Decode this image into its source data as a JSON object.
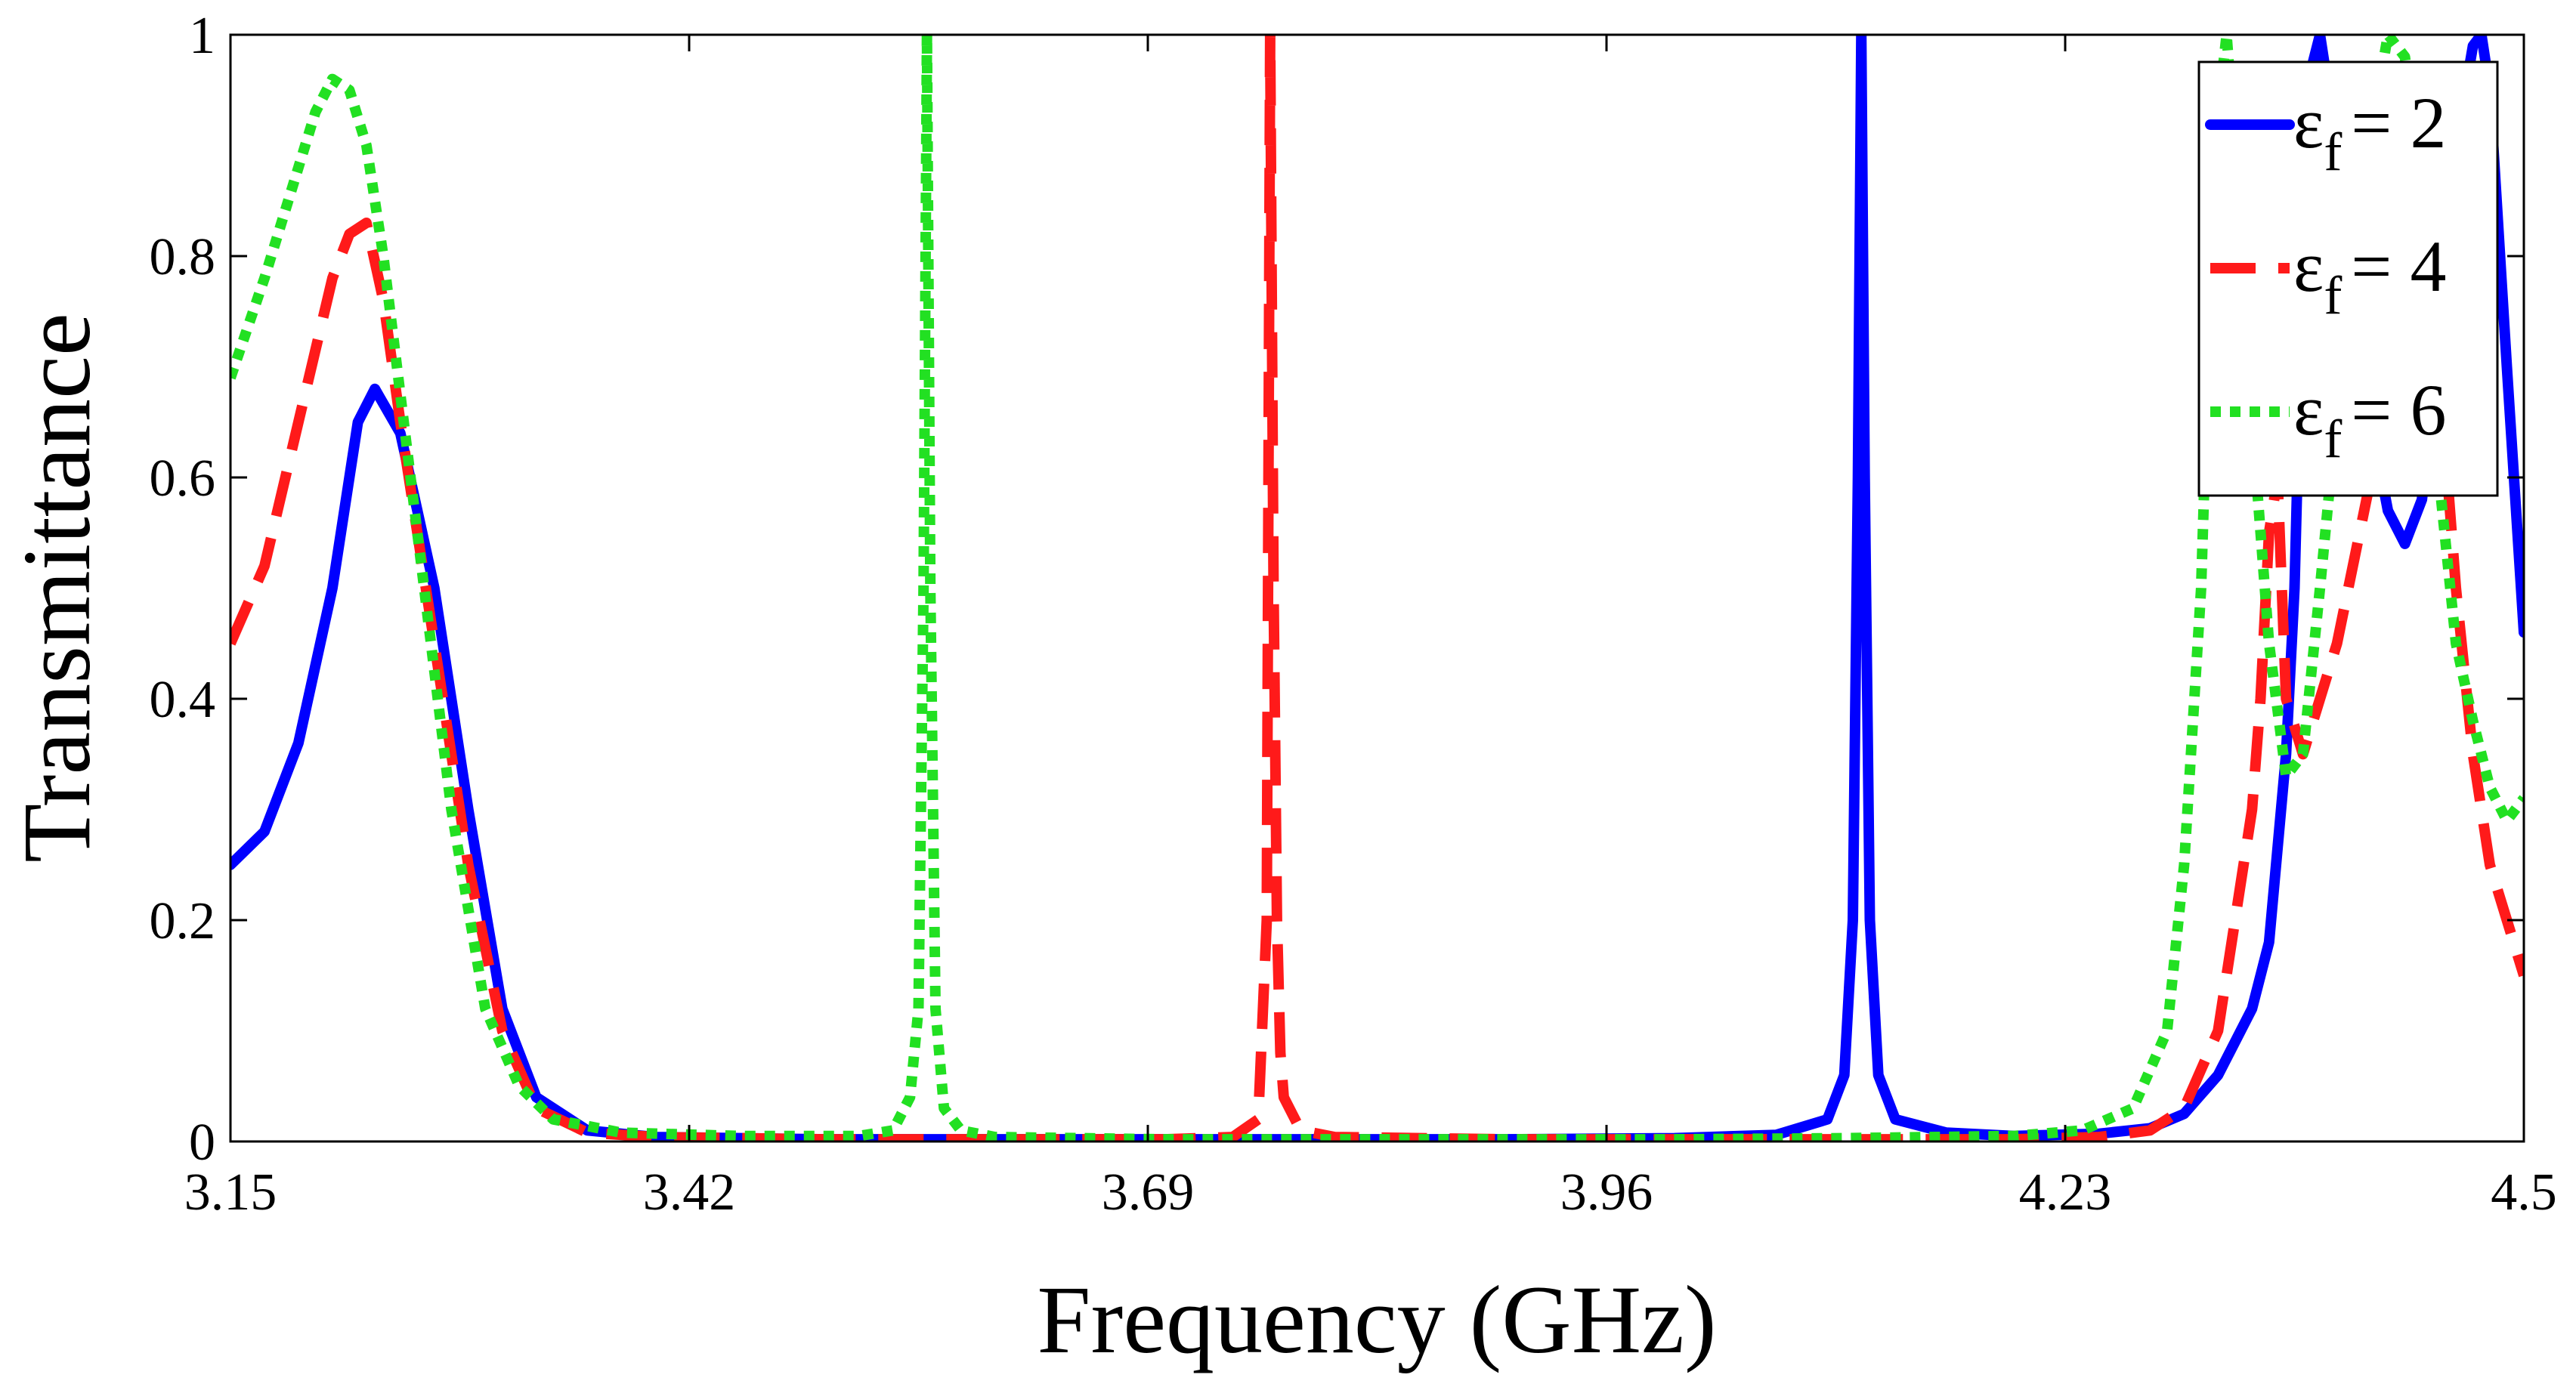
{
  "chart_data": {
    "type": "line",
    "title": "",
    "xlabel": "Frequency (GHz)",
    "ylabel": "Transmittance",
    "xlim": [
      3.15,
      4.5
    ],
    "ylim": [
      0,
      1
    ],
    "x_ticks": [
      3.15,
      3.42,
      3.69,
      3.96,
      4.23,
      4.5
    ],
    "x_tick_labels": [
      "3.15",
      "3.42",
      "3.69",
      "3.96",
      "4.23",
      "4.5"
    ],
    "y_ticks": [
      0,
      0.2,
      0.4,
      0.6,
      0.8,
      1
    ],
    "y_tick_labels": [
      "0",
      "0.2",
      "0.4",
      "0.6",
      "0.8",
      "1"
    ],
    "grid": false,
    "legend_position": "top-right",
    "series": [
      {
        "name": "εf = 2",
        "symbol": "ε",
        "subscript": "f",
        "value_text": "= 2",
        "color": "#0000ff",
        "style": "solid",
        "x": [
          3.15,
          3.17,
          3.19,
          3.21,
          3.225,
          3.235,
          3.25,
          3.27,
          3.29,
          3.31,
          3.33,
          3.36,
          3.4,
          3.5,
          3.6,
          3.7,
          3.8,
          3.9,
          4.0,
          4.06,
          4.09,
          4.1,
          4.105,
          4.108,
          4.11,
          4.112,
          4.115,
          4.12,
          4.13,
          4.16,
          4.2,
          4.25,
          4.28,
          4.3,
          4.32,
          4.34,
          4.35,
          4.36,
          4.365,
          4.37,
          4.375,
          4.38,
          4.39,
          4.4,
          4.41,
          4.42,
          4.43,
          4.44,
          4.45,
          4.46,
          4.47,
          4.475,
          4.48,
          4.49,
          4.5
        ],
        "y": [
          0.25,
          0.28,
          0.36,
          0.5,
          0.65,
          0.68,
          0.64,
          0.5,
          0.3,
          0.12,
          0.04,
          0.01,
          0.004,
          0.002,
          0.002,
          0.002,
          0.002,
          0.002,
          0.003,
          0.006,
          0.02,
          0.06,
          0.2,
          0.6,
          1.0,
          0.6,
          0.2,
          0.06,
          0.02,
          0.008,
          0.005,
          0.007,
          0.012,
          0.025,
          0.06,
          0.12,
          0.18,
          0.35,
          0.5,
          0.8,
          0.97,
          1.0,
          0.9,
          0.75,
          0.65,
          0.57,
          0.54,
          0.58,
          0.72,
          0.9,
          0.99,
          1.0,
          0.95,
          0.7,
          0.46
        ]
      },
      {
        "name": "εf = 4",
        "symbol": "ε",
        "subscript": "f",
        "value_text": "= 4",
        "color": "#ff1a1a",
        "style": "dashed",
        "x": [
          3.15,
          3.17,
          3.19,
          3.21,
          3.22,
          3.23,
          3.24,
          3.25,
          3.27,
          3.29,
          3.31,
          3.33,
          3.36,
          3.4,
          3.5,
          3.6,
          3.7,
          3.74,
          3.755,
          3.76,
          3.762,
          3.764,
          3.766,
          3.768,
          3.77,
          3.78,
          3.8,
          3.9,
          4.0,
          4.1,
          4.2,
          4.25,
          4.28,
          4.3,
          4.32,
          4.34,
          4.345,
          4.35,
          4.355,
          4.36,
          4.37,
          4.39,
          4.41,
          4.42,
          4.43,
          4.44,
          4.45,
          4.46,
          4.47,
          4.48,
          4.5
        ],
        "y": [
          0.45,
          0.52,
          0.65,
          0.78,
          0.82,
          0.83,
          0.76,
          0.65,
          0.45,
          0.25,
          0.1,
          0.03,
          0.008,
          0.004,
          0.002,
          0.002,
          0.002,
          0.004,
          0.02,
          0.2,
          1.0,
          0.5,
          0.2,
          0.08,
          0.04,
          0.01,
          0.004,
          0.002,
          0.002,
          0.002,
          0.002,
          0.004,
          0.01,
          0.03,
          0.1,
          0.3,
          0.4,
          0.55,
          0.6,
          0.4,
          0.35,
          0.45,
          0.6,
          0.72,
          0.8,
          0.85,
          0.7,
          0.5,
          0.35,
          0.25,
          0.15
        ]
      },
      {
        "name": "εf = 6",
        "symbol": "ε",
        "subscript": "f",
        "value_text": "= 6",
        "color": "#22e022",
        "style": "dotted",
        "x": [
          3.15,
          3.17,
          3.19,
          3.2,
          3.21,
          3.22,
          3.23,
          3.24,
          3.26,
          3.28,
          3.3,
          3.32,
          3.34,
          3.38,
          3.45,
          3.52,
          3.54,
          3.55,
          3.555,
          3.558,
          3.56,
          3.562,
          3.565,
          3.57,
          3.58,
          3.6,
          3.7,
          3.8,
          3.9,
          4.0,
          4.1,
          4.2,
          4.24,
          4.27,
          4.29,
          4.3,
          4.31,
          4.315,
          4.32,
          4.325,
          4.33,
          4.34,
          4.35,
          4.36,
          4.37,
          4.38,
          4.4,
          4.42,
          4.43,
          4.44,
          4.45,
          4.46,
          4.47,
          4.48,
          4.49,
          4.5
        ],
        "y": [
          0.69,
          0.78,
          0.88,
          0.93,
          0.96,
          0.95,
          0.9,
          0.8,
          0.55,
          0.3,
          0.12,
          0.05,
          0.02,
          0.008,
          0.005,
          0.005,
          0.01,
          0.04,
          0.12,
          0.5,
          1.0,
          0.5,
          0.12,
          0.03,
          0.01,
          0.004,
          0.002,
          0.002,
          0.002,
          0.002,
          0.003,
          0.005,
          0.01,
          0.03,
          0.1,
          0.25,
          0.5,
          0.75,
          0.93,
          1.0,
          0.9,
          0.65,
          0.45,
          0.33,
          0.35,
          0.5,
          0.82,
          1.0,
          0.98,
          0.85,
          0.6,
          0.45,
          0.38,
          0.32,
          0.29,
          0.31
        ]
      }
    ]
  }
}
